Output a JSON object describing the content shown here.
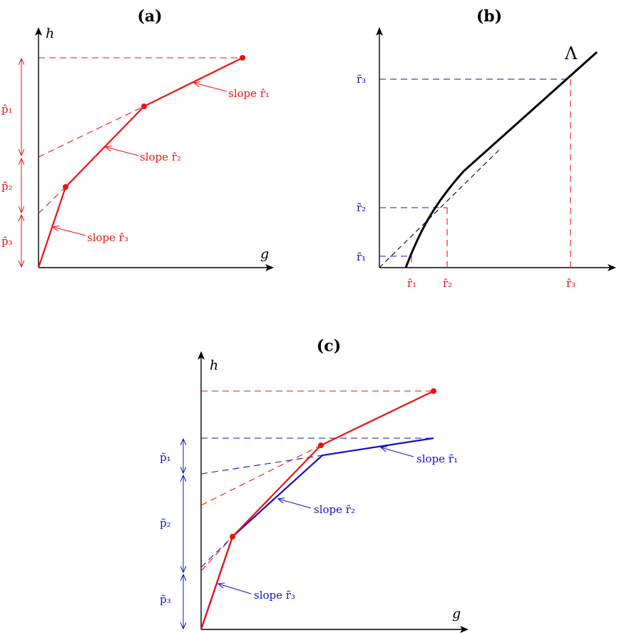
{
  "panels": {
    "a": {
      "title": "(a)",
      "y_axis": "h",
      "x_axis": "g",
      "slopes": [
        "slope r̂₁",
        "slope r̂₂",
        "slope r̂₃"
      ],
      "intervals": [
        "p̂₁",
        "p̂₂",
        "p̂₃"
      ]
    },
    "b": {
      "title": "(b)",
      "curve_label": "Λ",
      "y_ticks": [
        "r̃₃",
        "r̃₂",
        "r̃₁"
      ],
      "x_ticks": [
        "r̂₁",
        "r̂₂",
        "r̂₃"
      ]
    },
    "c": {
      "title": "(c)",
      "y_axis": "h",
      "x_axis": "g",
      "slopes": [
        "slope r̃₁",
        "slope r̃₂",
        "slope r̃₃"
      ],
      "intervals": [
        "p̃₁",
        "p̃₂",
        "p̃₃"
      ]
    }
  },
  "colors": {
    "red": "#e11111",
    "blue": "#1111cc",
    "black": "#000000"
  }
}
